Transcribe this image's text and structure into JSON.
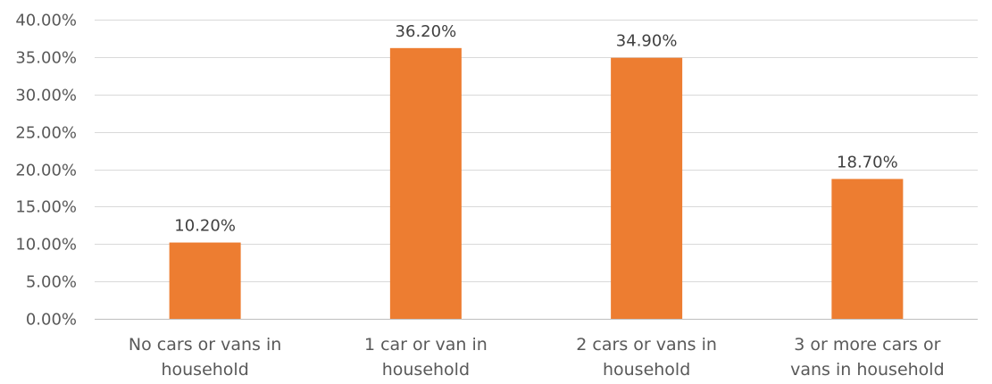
{
  "chart_data": {
    "type": "bar",
    "categories": [
      "No cars or vans in household",
      "1 car or van in household",
      "2 cars or vans in household",
      "3 or more cars or vans in household"
    ],
    "category_label_lines": [
      [
        "No cars or vans in",
        "household"
      ],
      [
        "1 car or van in",
        "household"
      ],
      [
        "2 cars or vans in",
        "household"
      ],
      [
        "3 or more cars or",
        "vans in household"
      ]
    ],
    "values": [
      10.2,
      36.2,
      34.9,
      18.7
    ],
    "data_labels": [
      "10.20%",
      "36.20%",
      "34.90%",
      "18.70%"
    ],
    "ylim": [
      0,
      40
    ],
    "yticks": [
      0,
      5,
      10,
      15,
      20,
      25,
      30,
      35,
      40
    ],
    "ytick_labels": [
      "0.00%",
      "5.00%",
      "10.00%",
      "15.00%",
      "20.00%",
      "25.00%",
      "30.00%",
      "35.00%",
      "40.00%"
    ],
    "title": "",
    "xlabel": "",
    "ylabel": "",
    "grid": true,
    "legend": "none",
    "colors": {
      "bar": "#ED7D31",
      "grid": "#D9D9D9",
      "axis": "#BFBFBF",
      "tick_text": "#595959",
      "data_label_text": "#404040"
    }
  }
}
